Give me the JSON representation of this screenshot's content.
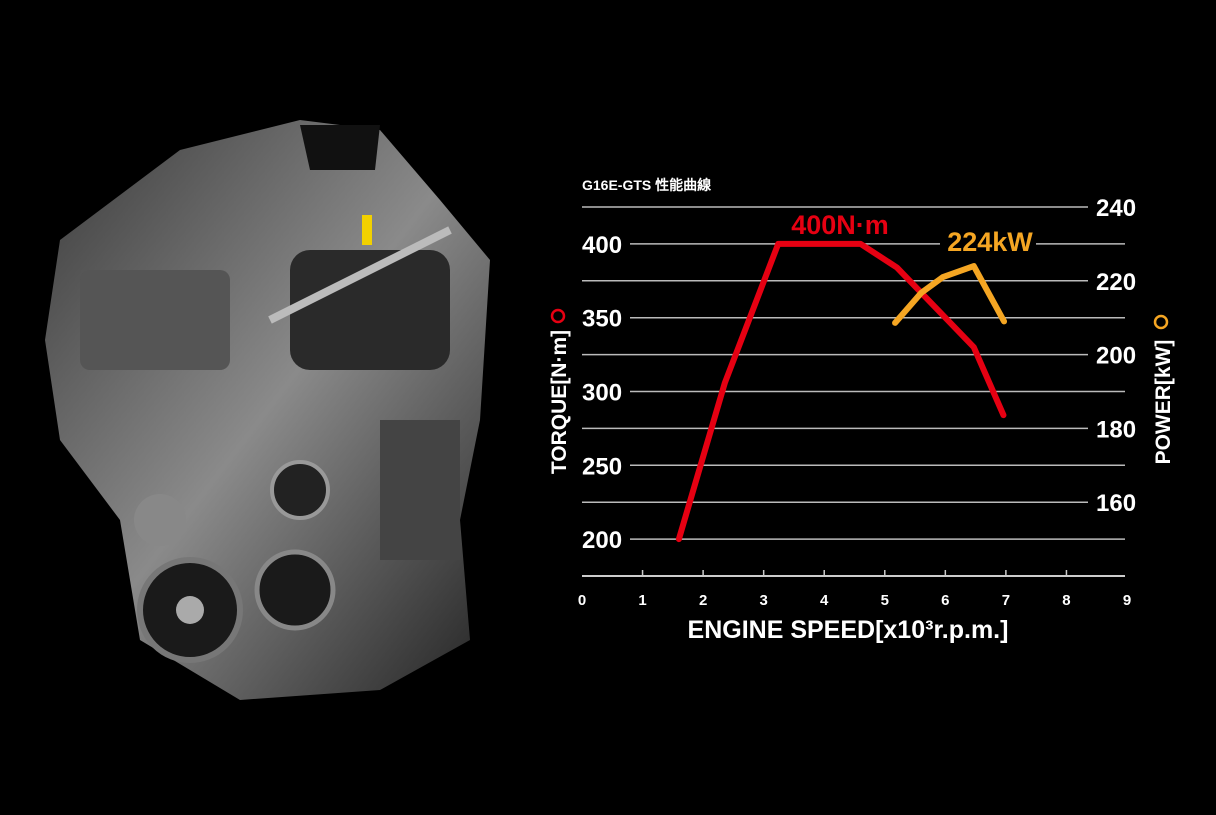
{
  "chart_data": {
    "type": "line",
    "title": "G16E-GTS 性能曲線",
    "xlabel": "ENGINE SPEED[x10³r.p.m.]",
    "ylabel_left": "TORQUE[N·m]",
    "ylabel_right": "POWER[kW]",
    "xlim": [
      0,
      9
    ],
    "xticks": [
      "0",
      "1",
      "2",
      "3",
      "4",
      "5",
      "6",
      "7",
      "8",
      "9"
    ],
    "ylim_left": [
      175,
      425
    ],
    "yticks_left": [
      "200",
      "250",
      "300",
      "350",
      "400"
    ],
    "ylim_right": [
      140,
      240
    ],
    "yticks_right": [
      "160",
      "180",
      "200",
      "220",
      "240"
    ],
    "grid": true,
    "series": [
      {
        "name": "TORQUE[N·m]",
        "axis": "left",
        "color": "#e60012",
        "x": [
          1.6,
          2.36,
          3.24,
          4.6,
          5.2,
          6.47,
          6.96
        ],
        "y": [
          200,
          306,
          400,
          400,
          384,
          330,
          284
        ],
        "annotation": "400N·m"
      },
      {
        "name": "POWER[kW]",
        "axis": "right",
        "color": "#f5a623",
        "x": [
          5.17,
          5.6,
          5.96,
          6.47,
          6.97
        ],
        "y": [
          208.6,
          216.7,
          221,
          224,
          209
        ],
        "annotation": "224kW"
      }
    ]
  },
  "image": {
    "subject": "engine-photo"
  }
}
